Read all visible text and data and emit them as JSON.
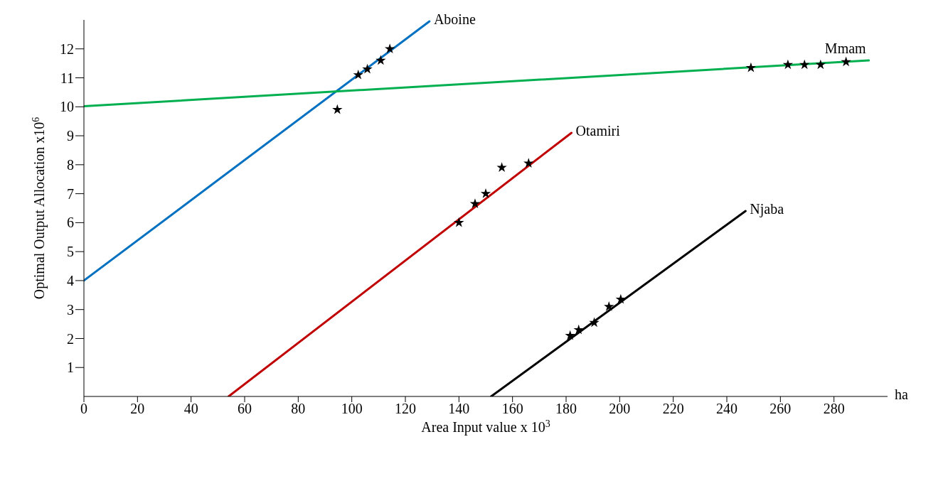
{
  "chart_data": {
    "type": "line",
    "xlabel": "Area Input value x 10$^{3}$",
    "ylabel": "Optimal Output Allocation x10$^{6}$",
    "annotations": [
      "ha"
    ],
    "xlim": [
      0,
      300
    ],
    "ylim": [
      0,
      13
    ],
    "xticks": [
      0,
      20,
      40,
      60,
      80,
      100,
      120,
      140,
      160,
      180,
      200,
      220,
      240,
      260,
      280
    ],
    "yticks": [
      1,
      2,
      3,
      4,
      5,
      6,
      7,
      8,
      9,
      10,
      11,
      12
    ],
    "grid": false,
    "legend": false,
    "series": [
      {
        "name": "Aboine",
        "color": "#0070c0",
        "x": [
          0,
          129
        ],
        "values": [
          4,
          12.95
        ],
        "line_style": "solid"
      },
      {
        "name": "Mmam",
        "color": "#00b050",
        "x": [
          0,
          293
        ],
        "values": [
          10.02,
          11.6
        ],
        "line_style": "solid"
      },
      {
        "name": "Otamiri",
        "color": "#c00000",
        "x": [
          54,
          182
        ],
        "values": [
          0,
          9.1
        ],
        "line_style": "solid"
      },
      {
        "name": "Njaba",
        "color": "#000000",
        "x": [
          152,
          247
        ],
        "values": [
          0,
          6.4
        ],
        "line_style": "solid"
      },
      {
        "type": "scatter",
        "color": "#000000",
        "marker": "star",
        "x": [
          94.6,
          102.4,
          105.8,
          110.8,
          114.2
        ],
        "values": [
          9.9,
          11.1,
          11.3,
          11.6,
          12.0
        ]
      },
      {
        "type": "scatter",
        "color": "#000000",
        "marker": "star",
        "x": [
          249,
          262.8,
          269,
          275,
          284.5
        ],
        "values": [
          11.35,
          11.45,
          11.45,
          11.45,
          11.55
        ]
      },
      {
        "type": "scatter",
        "color": "#000000",
        "marker": "star",
        "x": [
          140,
          146,
          150,
          156,
          166
        ],
        "values": [
          6.0,
          6.65,
          7.0,
          7.9,
          8.05
        ]
      },
      {
        "type": "scatter",
        "color": "#000000",
        "marker": "star",
        "x": [
          181.5,
          184.7,
          190.5,
          196,
          200.4
        ],
        "values": [
          2.1,
          2.3,
          2.55,
          3.1,
          3.35
        ]
      }
    ]
  }
}
